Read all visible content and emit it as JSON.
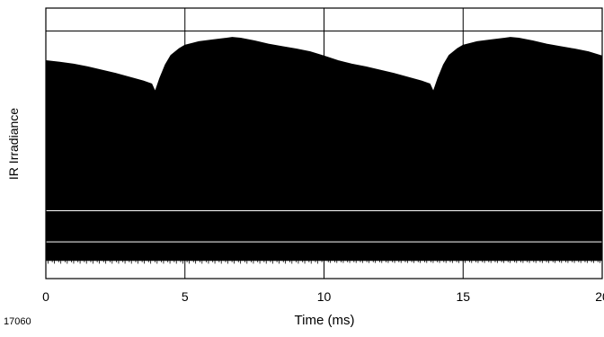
{
  "figure_id": "17060",
  "chart_data": {
    "type": "area",
    "xlabel": "Time (ms)",
    "ylabel": "IR Irradiance",
    "xlim": [
      0,
      20
    ],
    "x_ticks": [
      0,
      5,
      10,
      15,
      20
    ],
    "x_tick_labels": [
      "0",
      "5",
      "10",
      "15",
      "20"
    ],
    "y_axis_values_shown": false,
    "ylim_relative": [
      0,
      1
    ],
    "grid": true,
    "grid_rows_relative": [
      0.1357,
      0.2508,
      0.9154
    ],
    "fill_color": "#000000",
    "lower_envelope_relative": 0.069,
    "series": [
      {
        "x": [
          0,
          0.5,
          1.0,
          1.5,
          2.0,
          2.5,
          3.0,
          3.5,
          3.8,
          3.93,
          4.0,
          4.1,
          4.2,
          4.3,
          4.5,
          4.8,
          5.0,
          5.3,
          5.5,
          6.0,
          6.5,
          6.7,
          7.0,
          7.5,
          8.0,
          8.5,
          9.0,
          9.5,
          10.0,
          10.5,
          11.0,
          11.5,
          12.0,
          12.5,
          13.0,
          13.5,
          13.8,
          13.93,
          14.0,
          14.1,
          14.2,
          14.3,
          14.5,
          14.8,
          15.0,
          15.3,
          15.5,
          16.0,
          16.5,
          16.7,
          17.0,
          17.5,
          18.0,
          18.5,
          19.0,
          19.5,
          20.0
        ],
        "upper_envelope_relative": [
          0.805,
          0.799,
          0.792,
          0.782,
          0.77,
          0.758,
          0.744,
          0.73,
          0.719,
          0.69,
          0.71,
          0.74,
          0.765,
          0.79,
          0.825,
          0.85,
          0.862,
          0.87,
          0.875,
          0.882,
          0.888,
          0.891,
          0.888,
          0.878,
          0.866,
          0.857,
          0.848,
          0.838,
          0.822,
          0.805,
          0.792,
          0.782,
          0.77,
          0.758,
          0.744,
          0.73,
          0.719,
          0.69,
          0.71,
          0.74,
          0.765,
          0.79,
          0.825,
          0.85,
          0.862,
          0.87,
          0.875,
          0.882,
          0.888,
          0.891,
          0.888,
          0.878,
          0.866,
          0.857,
          0.848,
          0.838,
          0.822
        ]
      }
    ]
  }
}
